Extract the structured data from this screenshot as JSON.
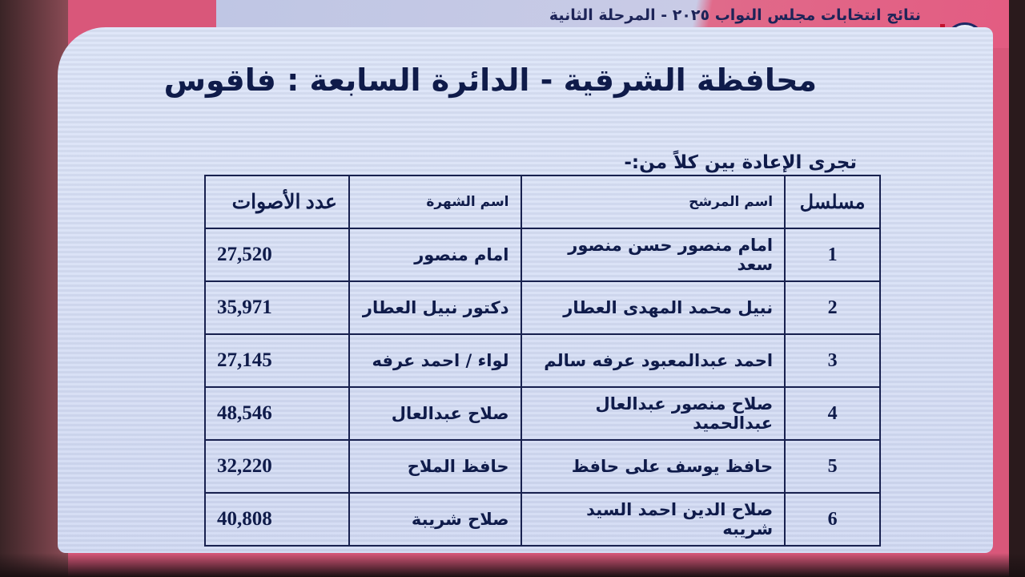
{
  "header": {
    "title": "نتائج انتخابات مجلس النواب ٢٠٢٥ - المرحلة الثانية",
    "logo": "parliament-emblem"
  },
  "slide": {
    "title": "محافظة الشرقية - الدائرة السابعة : فاقوس",
    "subtitle": "تجرى الإعادة بين كلاً من:-"
  },
  "table": {
    "headers": {
      "serial": "مسلسل",
      "name": "اسم المرشح",
      "nickname": "اسم الشهرة",
      "votes": "عدد الأصوات"
    },
    "rows": [
      {
        "serial": "1",
        "name": "امام منصور حسن منصور سعد",
        "nickname": "امام منصور",
        "votes": "27,520"
      },
      {
        "serial": "2",
        "name": "نبيل محمد المهدى العطار",
        "nickname": "دكتور نبيل العطار",
        "votes": "35,971"
      },
      {
        "serial": "3",
        "name": "احمد عبدالمعبود عرفه سالم",
        "nickname": "لواء / احمد عرفه",
        "votes": "27,145"
      },
      {
        "serial": "4",
        "name": "صلاح منصور عبدالعال عبدالحميد",
        "nickname": "صلاح عبدالعال",
        "votes": "48,546"
      },
      {
        "serial": "5",
        "name": "حافظ يوسف على حافظ",
        "nickname": "حافظ الملاح",
        "votes": "32,220"
      },
      {
        "serial": "6",
        "name": "صلاح الدين احمد السيد شريبه",
        "nickname": "صلاح شريبة",
        "votes": "40,808"
      }
    ]
  }
}
